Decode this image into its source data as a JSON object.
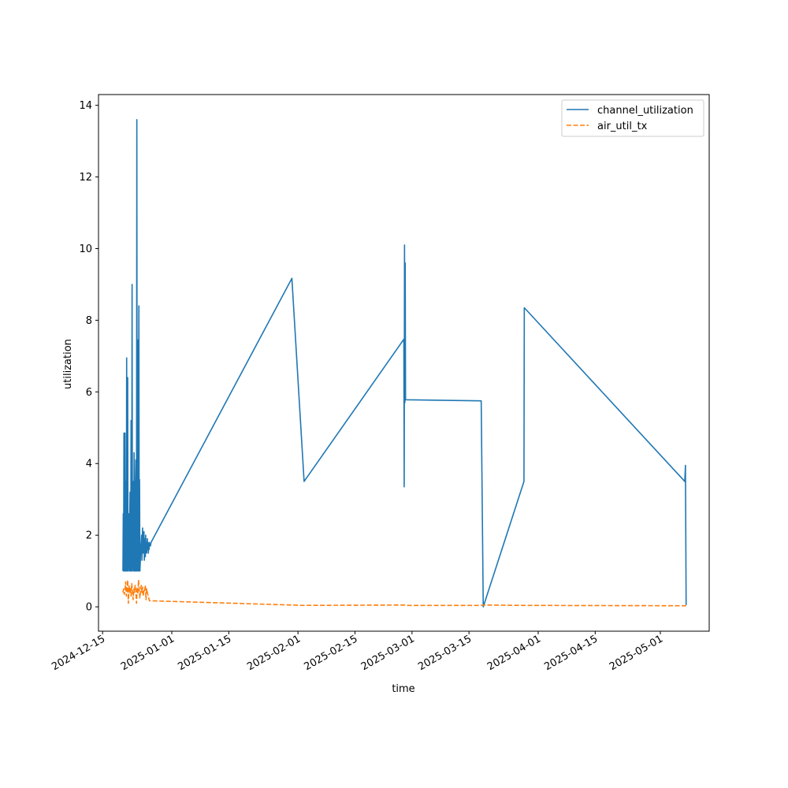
{
  "chart_data": {
    "type": "line",
    "title": "",
    "xlabel": "time",
    "ylabel": "utilization",
    "x_type": "date",
    "xlim": [
      "2024-12-14",
      "2025-05-13"
    ],
    "ylim": [
      -0.68,
      14.3
    ],
    "x_ticks": [
      "2024-12-15",
      "2025-01-01",
      "2025-01-15",
      "2025-02-01",
      "2025-02-15",
      "2025-03-01",
      "2025-03-15",
      "2025-04-01",
      "2025-04-15",
      "2025-05-01"
    ],
    "y_ticks": [
      0,
      2,
      4,
      6,
      8,
      10,
      12,
      14
    ],
    "grid": false,
    "legend": "top-right",
    "series": [
      {
        "name": "channel_utilization",
        "color": "#1f77b4",
        "dash": "solid",
        "x": [
          "2024-12-20T00:00",
          "2024-12-20T02:00",
          "2024-12-20T04:00",
          "2024-12-20T06:00",
          "2024-12-20T08:00",
          "2024-12-20T10:00",
          "2024-12-20T12:00",
          "2024-12-20T14:00",
          "2024-12-20T16:00",
          "2024-12-20T18:00",
          "2024-12-20T20:00",
          "2024-12-20T22:00",
          "2024-12-21T00:00",
          "2024-12-21T02:00",
          "2024-12-21T04:00",
          "2024-12-21T06:00",
          "2024-12-21T08:00",
          "2024-12-21T10:00",
          "2024-12-21T12:00",
          "2024-12-21T14:00",
          "2024-12-21T16:00",
          "2024-12-21T18:00",
          "2024-12-21T20:00",
          "2024-12-21T22:00",
          "2024-12-22T00:00",
          "2024-12-22T02:00",
          "2024-12-22T04:00",
          "2024-12-22T06:00",
          "2024-12-22T08:00",
          "2024-12-22T10:00",
          "2024-12-22T12:00",
          "2024-12-22T14:00",
          "2024-12-22T16:00",
          "2024-12-22T18:00",
          "2024-12-22T20:00",
          "2024-12-22T22:00",
          "2024-12-23T00:00",
          "2024-12-23T02:00",
          "2024-12-23T04:00",
          "2024-12-23T06:00",
          "2024-12-23T08:00",
          "2024-12-23T10:00",
          "2024-12-23T12:00",
          "2024-12-23T14:00",
          "2024-12-23T16:00",
          "2024-12-23T18:00",
          "2024-12-23T20:00",
          "2024-12-23T22:00",
          "2024-12-24T00:00",
          "2024-12-24T02:00",
          "2024-12-24T04:00",
          "2024-12-24T06:00",
          "2024-12-24T08:00",
          "2024-12-24T10:00",
          "2024-12-24T12:00",
          "2024-12-24T14:00",
          "2024-12-24T16:00",
          "2024-12-24T18:00",
          "2024-12-24T20:00",
          "2024-12-24T22:00",
          "2024-12-25T00:00",
          "2024-12-25T02:00",
          "2024-12-25T04:00",
          "2024-12-25T06:00",
          "2024-12-25T08:00",
          "2024-12-25T10:00",
          "2024-12-25T12:00",
          "2024-12-25T14:00",
          "2024-12-25T16:00",
          "2024-12-25T18:00",
          "2024-12-25T20:00",
          "2024-12-25T22:00",
          "2024-12-26T00:00",
          "2024-12-26T02:00",
          "2024-12-26T04:00",
          "2024-12-26T06:00",
          "2024-12-26T08:00",
          "2024-12-26T10:00",
          "2024-12-26T12:00",
          "2024-12-26T14:00",
          "2024-12-26T16:00",
          "2024-12-26T18:00",
          "2024-12-26T20:00",
          "2024-12-26T22:00",
          "2025-01-30T12:00",
          "2025-02-02T12:00",
          "2025-02-27T00:00",
          "2025-02-27T02:00",
          "2025-02-27T04:00",
          "2025-02-27T06:00",
          "2025-02-27T08:00",
          "2025-02-27T10:00",
          "2025-02-27T12:00",
          "2025-03-18T00:00",
          "2025-03-18T12:00",
          "2025-03-28T12:00",
          "2025-03-28T14:00",
          "2025-05-07T00:00",
          "2025-05-07T04:00",
          "2025-05-07T08:00"
        ],
        "y": [
          1.0,
          2.6,
          1.0,
          4.85,
          1.0,
          2.4,
          4.85,
          1.0,
          3.5,
          1.0,
          1.2,
          6.95,
          1.0,
          2.2,
          6.4,
          1.0,
          1.5,
          1.2,
          2.6,
          1.0,
          2.4,
          3.2,
          1.0,
          1.3,
          5.2,
          1.0,
          2.2,
          9.0,
          1.0,
          1.5,
          1.2,
          3.5,
          1.0,
          4.3,
          1.0,
          2.4,
          1.0,
          3.5,
          4.1,
          1.0,
          1.2,
          13.6,
          1.0,
          2.6,
          7.45,
          1.0,
          3.0,
          8.4,
          1.0,
          3.55,
          1.0,
          1.2,
          1.5,
          1.7,
          1.8,
          2.0,
          1.3,
          1.9,
          2.2,
          1.5,
          1.8,
          1.6,
          2.1,
          1.3,
          1.7,
          1.9,
          1.4,
          2.0,
          1.6,
          1.8,
          1.5,
          1.7,
          1.9,
          1.6,
          1.8,
          1.5,
          1.7,
          1.6,
          1.8,
          1.7,
          1.75,
          1.7,
          1.75,
          1.8,
          9.17,
          3.5,
          7.47,
          3.35,
          10.1,
          5.7,
          9.6,
          5.78,
          5.78,
          5.75,
          0.0,
          3.5,
          8.35,
          3.5,
          3.95,
          0.05
        ]
      },
      {
        "name": "air_util_tx",
        "color": "#ff7f0e",
        "dash": "dashed",
        "x": [
          "2024-12-20T00:00",
          "2024-12-20T04:00",
          "2024-12-20T08:00",
          "2024-12-20T12:00",
          "2024-12-20T16:00",
          "2024-12-20T20:00",
          "2024-12-21T00:00",
          "2024-12-21T04:00",
          "2024-12-21T08:00",
          "2024-12-21T12:00",
          "2024-12-21T16:00",
          "2024-12-21T20:00",
          "2024-12-22T00:00",
          "2024-12-22T04:00",
          "2024-12-22T08:00",
          "2024-12-22T12:00",
          "2024-12-22T16:00",
          "2024-12-22T20:00",
          "2024-12-23T00:00",
          "2024-12-23T04:00",
          "2024-12-23T08:00",
          "2024-12-23T12:00",
          "2024-12-23T16:00",
          "2024-12-23T20:00",
          "2024-12-24T00:00",
          "2024-12-24T04:00",
          "2024-12-24T08:00",
          "2024-12-24T12:00",
          "2024-12-24T16:00",
          "2024-12-24T20:00",
          "2024-12-25T00:00",
          "2024-12-25T04:00",
          "2024-12-25T08:00",
          "2024-12-25T12:00",
          "2024-12-25T16:00",
          "2024-12-25T20:00",
          "2024-12-26T00:00",
          "2024-12-26T12:00",
          "2025-02-02T12:00",
          "2025-02-27T00:00",
          "2025-02-28T00:00",
          "2025-03-18T00:00",
          "2025-03-18T12:00",
          "2025-03-28T12:00",
          "2025-05-07T00:00",
          "2025-05-07T08:00"
        ],
        "y": [
          0.4,
          0.5,
          0.35,
          0.45,
          0.7,
          0.3,
          0.5,
          0.75,
          0.1,
          0.6,
          0.4,
          0.55,
          0.3,
          0.65,
          0.45,
          0.2,
          0.5,
          0.4,
          0.6,
          0.45,
          0.1,
          0.55,
          0.35,
          0.75,
          0.5,
          0.25,
          0.45,
          0.6,
          0.4,
          0.55,
          0.3,
          0.5,
          0.45,
          0.6,
          0.2,
          0.5,
          0.4,
          0.17,
          0.04,
          0.05,
          0.04,
          0.04,
          0.05,
          0.04,
          0.03,
          0.03
        ]
      }
    ]
  }
}
